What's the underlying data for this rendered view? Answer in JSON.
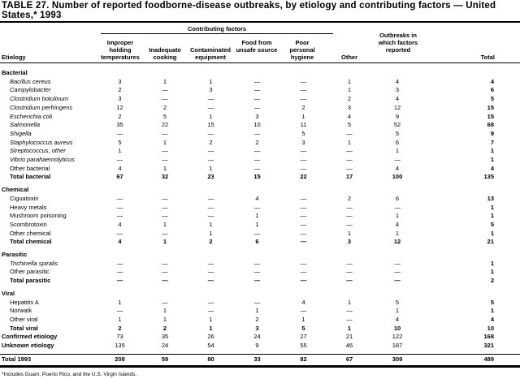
{
  "title": "TABLE 27. Number of reported foodborne-disease outbreaks, by etiology and contributing factors — United States,* 1993",
  "header": {
    "group": "Contributing factors",
    "etiology": "Etiology",
    "columns": [
      "Improper holding temperatures",
      "Inadequate cooking",
      "Contaminated equipment",
      "Food from unsafe source",
      "Poor personal hygiene",
      "Other",
      "Outbreaks in which factors reported",
      "Total"
    ]
  },
  "rows": [
    {
      "type": "group",
      "label": "Bacterial"
    },
    {
      "type": "item",
      "italic": true,
      "label": "Bacillus cereus",
      "values": [
        "3",
        "1",
        "1",
        "—",
        "—",
        "1",
        "4",
        "4"
      ]
    },
    {
      "type": "item",
      "italic": true,
      "label": "Campylobacter",
      "values": [
        "2",
        "—",
        "3",
        "—",
        "—",
        "1",
        "3",
        "6"
      ]
    },
    {
      "type": "item",
      "italic": true,
      "label": "Clostridium botulinum",
      "values": [
        "3",
        "—",
        "—",
        "—",
        "—",
        "2",
        "4",
        "5"
      ]
    },
    {
      "type": "item",
      "italic": true,
      "label": "Clostridium perfringens",
      "values": [
        "12",
        "2",
        "—",
        "—",
        "2",
        "3",
        "12",
        "15"
      ]
    },
    {
      "type": "item",
      "italic": true,
      "label": "Escherichia coli",
      "values": [
        "2",
        "5",
        "1",
        "3",
        "1",
        "4",
        "9",
        "15"
      ]
    },
    {
      "type": "item",
      "italic": true,
      "label": "Salmonella",
      "values": [
        "35",
        "22",
        "15",
        "10",
        "11",
        "5",
        "52",
        "68"
      ]
    },
    {
      "type": "item",
      "italic": true,
      "label": "Shigella",
      "values": [
        "—",
        "—",
        "—",
        "—",
        "5",
        "—",
        "5",
        "9"
      ]
    },
    {
      "type": "item",
      "italic": true,
      "label": "Staphylococcus aureus",
      "values": [
        "5",
        "1",
        "2",
        "2",
        "3",
        "1",
        "6",
        "7"
      ]
    },
    {
      "type": "item",
      "italic": true,
      "label": "Streptococcus, other",
      "values": [
        "1",
        "—",
        "—",
        "—",
        "—",
        "—",
        "1",
        "1"
      ]
    },
    {
      "type": "item",
      "italic": true,
      "label": "Vibrio parahaemolyticus",
      "values": [
        "—",
        "—",
        "—",
        "—",
        "—",
        "—",
        "—",
        "1"
      ]
    },
    {
      "type": "item",
      "italic": false,
      "label": "Other bacterial",
      "values": [
        "4",
        "1",
        "1",
        "—",
        "—",
        "—",
        "4",
        "4"
      ]
    },
    {
      "type": "total",
      "label": "Total bacterial",
      "values": [
        "67",
        "32",
        "23",
        "15",
        "22",
        "17",
        "100",
        "135"
      ]
    },
    {
      "type": "group",
      "label": "Chemical"
    },
    {
      "type": "item",
      "italic": false,
      "label": "Ciguatoxin",
      "values": [
        "—",
        "—",
        "—",
        "4",
        "—",
        "2",
        "6",
        "13"
      ]
    },
    {
      "type": "item",
      "italic": false,
      "label": "Heavy metals",
      "values": [
        "—",
        "—",
        "—",
        "—",
        "—",
        "—",
        "—",
        "1"
      ]
    },
    {
      "type": "item",
      "italic": false,
      "label": "Mushroom poisoning",
      "values": [
        "—",
        "—",
        "—",
        "1",
        "—",
        "—",
        "1",
        "1"
      ]
    },
    {
      "type": "item",
      "italic": false,
      "label": "Scombrotoxin",
      "values": [
        "4",
        "1",
        "1",
        "1",
        "—",
        "—",
        "4",
        "5"
      ]
    },
    {
      "type": "item",
      "italic": false,
      "label": "Other chemical",
      "values": [
        "—",
        "—",
        "1",
        "—",
        "—",
        "1",
        "1",
        "1"
      ]
    },
    {
      "type": "total",
      "label": "Total chemical",
      "values": [
        "4",
        "1",
        "2",
        "6",
        "—",
        "3",
        "12",
        "21"
      ]
    },
    {
      "type": "group",
      "label": "Parasitic"
    },
    {
      "type": "item",
      "italic": true,
      "label": "Trichinella spiralis",
      "values": [
        "—",
        "—",
        "—",
        "—",
        "—",
        "—",
        "—",
        "1"
      ]
    },
    {
      "type": "item",
      "italic": false,
      "label": "Other parasitic",
      "values": [
        "—",
        "—",
        "—",
        "—",
        "—",
        "—",
        "—",
        "1"
      ]
    },
    {
      "type": "total",
      "label": "Total parasitic",
      "values": [
        "—",
        "—",
        "—",
        "—",
        "—",
        "—",
        "—",
        "2"
      ]
    },
    {
      "type": "group",
      "label": "Viral"
    },
    {
      "type": "item",
      "italic": false,
      "label": "Hepatitis A",
      "values": [
        "1",
        "—",
        "—",
        "—",
        "4",
        "1",
        "5",
        "5"
      ]
    },
    {
      "type": "item",
      "italic": false,
      "label": "Norwalk",
      "values": [
        "—",
        "1",
        "—",
        "1",
        "—",
        "—",
        "1",
        "1"
      ]
    },
    {
      "type": "item",
      "italic": false,
      "label": "Other viral",
      "values": [
        "1",
        "1",
        "1",
        "2",
        "1",
        "—",
        "4",
        "4"
      ]
    },
    {
      "type": "total",
      "label": "Total viral",
      "values": [
        "2",
        "2",
        "1",
        "3",
        "5",
        "1",
        "10",
        "10"
      ]
    },
    {
      "type": "summary",
      "label": "Confirmed etiology",
      "values": [
        "73",
        "35",
        "26",
        "24",
        "27",
        "21",
        "122",
        "168"
      ]
    },
    {
      "type": "summary",
      "label": "Unknown etiology",
      "values": [
        "135",
        "24",
        "54",
        "9",
        "55",
        "46",
        "187",
        "321"
      ]
    },
    {
      "type": "grand",
      "label": "Total 1993",
      "values": [
        "208",
        "59",
        "80",
        "33",
        "82",
        "67",
        "309",
        "489"
      ]
    }
  ],
  "footnote": "*Includes Guam, Puerto Rico, and the U.S. Virgin Islands."
}
